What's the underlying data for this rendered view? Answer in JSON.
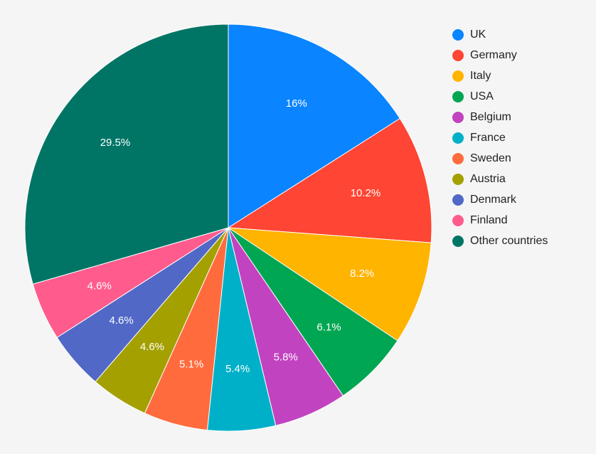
{
  "chart_data": {
    "type": "pie",
    "categories": [
      "UK",
      "Germany",
      "Italy",
      "USA",
      "Belgium",
      "France",
      "Sweden",
      "Austria",
      "Denmark",
      "Finland",
      "Other countries"
    ],
    "values": [
      16,
      10.2,
      8.2,
      6.1,
      5.8,
      5.4,
      5.1,
      4.6,
      4.6,
      4.6,
      29.5
    ],
    "labels": [
      "16%",
      "10.2%",
      "8.2%",
      "6.1%",
      "5.8%",
      "5.4%",
      "5.1%",
      "4.6%",
      "4.6%",
      "4.6%",
      "29.5%"
    ],
    "colors": [
      "#0a84ff",
      "#ff4533",
      "#ffb400",
      "#00a651",
      "#c243c0",
      "#00b0c8",
      "#ff6b3d",
      "#a4a000",
      "#5168c6",
      "#ff5c8d",
      "#007566"
    ],
    "start": "12 o'clock",
    "direction": "clockwise",
    "legend_position": "right"
  }
}
